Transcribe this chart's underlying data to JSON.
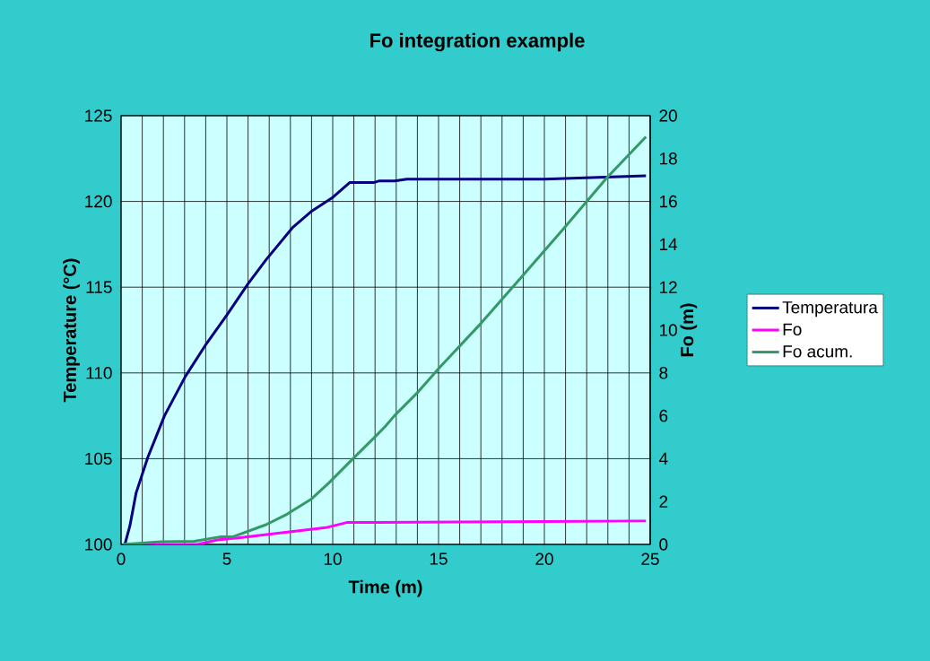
{
  "chart_data": {
    "type": "line",
    "title": "Fo integration example",
    "xlabel": "Time (m)",
    "ylabel": "Temperature (°C)",
    "y2label": "Fo (m)",
    "xlim": [
      0,
      25
    ],
    "xticks": [
      0,
      {
        "value": 1,
        "label": null
      },
      {
        "value": 2,
        "label": null
      },
      {
        "value": 3,
        "label": null
      },
      {
        "value": 4,
        "label": null
      },
      5,
      {
        "value": 6,
        "label": null
      },
      {
        "value": 7,
        "label": null
      },
      {
        "value": 8,
        "label": null
      },
      {
        "value": 9,
        "label": null
      },
      10,
      {
        "value": 11,
        "label": null
      },
      {
        "value": 12,
        "label": null
      },
      {
        "value": 13,
        "label": null
      },
      {
        "value": 14,
        "label": null
      },
      15,
      {
        "value": 16,
        "label": null
      },
      {
        "value": 17,
        "label": null
      },
      {
        "value": 18,
        "label": null
      },
      {
        "value": 19,
        "label": null
      },
      20,
      {
        "value": 21,
        "label": null
      },
      {
        "value": 22,
        "label": null
      },
      {
        "value": 23,
        "label": null
      },
      {
        "value": 24,
        "label": null
      },
      25
    ],
    "ylim": [
      100,
      125
    ],
    "yticks": [
      100,
      105,
      110,
      115,
      120,
      125
    ],
    "y2lim": [
      0,
      20
    ],
    "y2ticks": [
      0,
      2,
      4,
      6,
      8,
      10,
      12,
      14,
      16,
      18,
      20
    ],
    "grid": true,
    "legend": "right",
    "series": [
      {
        "name": "Temperatura",
        "color": "#000080",
        "x": [
          0.18,
          0.42,
          0.71,
          1.27,
          2.05,
          3.04,
          4.03,
          5.01,
          6.0,
          6.85,
          8.12,
          8.97,
          9.96,
          10.8,
          11.93,
          12.2,
          12.92,
          13.5,
          20.0,
          24.8
        ],
        "values": [
          100.0,
          101.1,
          103.0,
          105.1,
          107.5,
          109.8,
          111.7,
          113.4,
          115.2,
          116.6,
          118.5,
          119.4,
          120.2,
          121.1,
          121.1,
          121.2,
          121.2,
          121.3,
          121.3,
          121.5
        ]
      },
      {
        "name": "Fo",
        "color": "#ff00ff",
        "axis": "y2",
        "x": [
          0.18,
          3.6,
          4.6,
          5.44,
          9.67,
          10.66,
          12.08,
          20.0,
          24.8
        ],
        "values": [
          0.0,
          0.0,
          0.22,
          0.29,
          0.78,
          1.02,
          1.02,
          1.07,
          1.1
        ]
      },
      {
        "name": "Fo acum.",
        "color": "#339966",
        "axis": "y2",
        "x": [
          0.1,
          1.9,
          3.46,
          4.73,
          5.3,
          6.85,
          7.84,
          8.97,
          9.82,
          10.95,
          12.08,
          12.5,
          12.92,
          14.05,
          15.04,
          17.02,
          19.0,
          20.97,
          22.95,
          24.8
        ],
        "values": [
          0.0,
          0.13,
          0.15,
          0.36,
          0.36,
          0.92,
          1.41,
          2.1,
          2.87,
          3.99,
          5.1,
          5.52,
          6.01,
          7.13,
          8.24,
          10.33,
          12.56,
          14.8,
          17.1,
          19.02
        ]
      }
    ]
  }
}
